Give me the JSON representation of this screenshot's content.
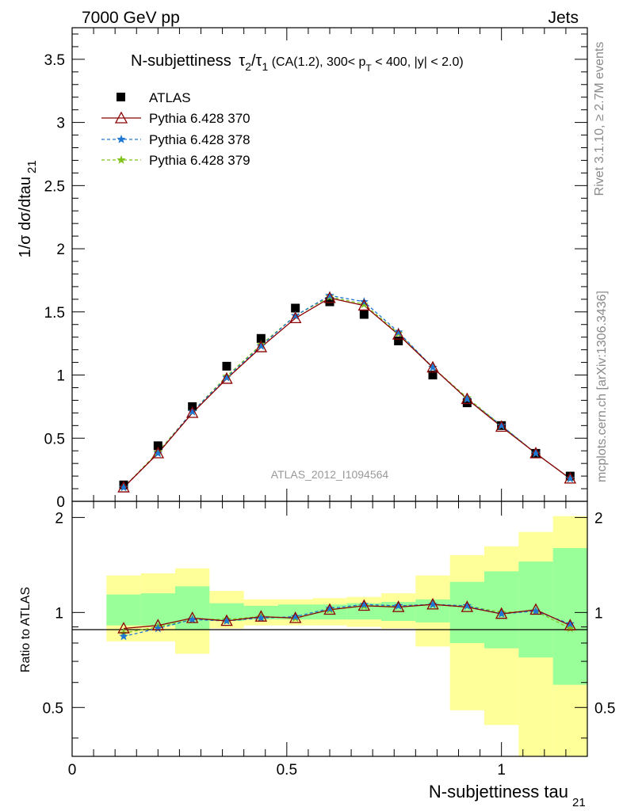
{
  "header": {
    "left": "7000 GeV pp",
    "right": "Jets"
  },
  "side_labels": {
    "rivet": "Rivet 3.1.10, ≥ 2.7M events",
    "mcplots": "mcplots.cern.ch [arXiv:1306.3436]"
  },
  "watermark": "ATLAS_2012_I1094564",
  "colors": {
    "atlas": "#000000",
    "p370": "#8b0000",
    "p378": "#1f77d4",
    "p379": "#7fc31c",
    "band_green": "#99ff99",
    "band_yellow": "#ffff99"
  },
  "chart_data": [
    {
      "type": "scatter",
      "panel": "main",
      "title_text": "N-subjettiness τ₂/τ₁ (CA(1.2), 300< p_T < 400, |y| < 2.0)",
      "title_parts": {
        "main": "N-subjettiness",
        "tau": "τ",
        "sub2": "2",
        "slash": "/",
        "sub1": "1",
        "cuts_a": " (CA(1.2), 300< p",
        "subT": "T",
        "cuts_b": " < 400, |y| < 2.0)"
      },
      "ylabel": "1/σ dσ/dtau",
      "ylabel_sub": "21",
      "xlim": [
        0,
        1.2
      ],
      "ylim": [
        0,
        3.75
      ],
      "yticks": [
        0,
        0.5,
        1,
        1.5,
        2,
        2.5,
        3,
        3.5
      ],
      "ytick_labels": [
        "0",
        "0.5",
        "1",
        "1.5",
        "2",
        "2.5",
        "3",
        "3.5"
      ],
      "x": [
        0.12,
        0.2,
        0.28,
        0.36,
        0.44,
        0.52,
        0.6,
        0.68,
        0.76,
        0.84,
        0.92,
        1.0,
        1.08,
        1.16
      ],
      "series": [
        {
          "name": "ATLAS",
          "marker": "square",
          "values": [
            0.13,
            0.44,
            0.75,
            1.07,
            1.29,
            1.53,
            1.58,
            1.48,
            1.27,
            1.0,
            0.78,
            0.6,
            0.38,
            0.2
          ]
        },
        {
          "name": "Pythia 6.428 370",
          "marker": "triangle",
          "values": [
            0.11,
            0.38,
            0.7,
            0.97,
            1.22,
            1.45,
            1.61,
            1.55,
            1.32,
            1.06,
            0.81,
            0.59,
            0.38,
            0.18
          ]
        },
        {
          "name": "Pythia 6.428 378",
          "marker": "star",
          "values": [
            0.11,
            0.38,
            0.71,
            0.98,
            1.23,
            1.47,
            1.63,
            1.58,
            1.34,
            1.06,
            0.81,
            0.6,
            0.38,
            0.18
          ]
        },
        {
          "name": "Pythia 6.428 379",
          "marker": "star",
          "values": [
            0.11,
            0.39,
            0.71,
            0.99,
            1.24,
            1.47,
            1.62,
            1.56,
            1.33,
            1.06,
            0.82,
            0.6,
            0.38,
            0.18
          ]
        }
      ]
    },
    {
      "type": "line",
      "panel": "ratio",
      "ylabel": "Ratio to ATLAS",
      "xlabel": "N-subjettiness tau",
      "xlabel_sub": "21",
      "xlim": [
        0,
        1.2
      ],
      "ylim": [
        0.35,
        2.25
      ],
      "xticks": [
        0,
        0.5,
        1
      ],
      "xtick_labels": [
        "0",
        "0.5",
        "1"
      ],
      "yticks": [
        0.5,
        1,
        2
      ],
      "ytick_labels": [
        "0.5",
        "1",
        "2"
      ],
      "bin_edges": [
        0.08,
        0.16,
        0.24,
        0.32,
        0.4,
        0.48,
        0.56,
        0.64,
        0.72,
        0.8,
        0.88,
        0.96,
        1.04,
        1.12,
        1.2
      ],
      "band_green": {
        "low": [
          0.91,
          0.91,
          0.88,
          0.94,
          0.95,
          0.95,
          0.95,
          0.95,
          0.94,
          0.93,
          0.8,
          0.77,
          0.72,
          0.59
        ],
        "high": [
          1.14,
          1.15,
          1.21,
          1.07,
          1.05,
          1.06,
          1.06,
          1.07,
          1.08,
          1.1,
          1.25,
          1.35,
          1.45,
          1.6
        ]
      },
      "band_yellow": {
        "low": [
          0.81,
          0.81,
          0.74,
          0.89,
          0.91,
          0.91,
          0.91,
          0.9,
          0.89,
          0.78,
          0.49,
          0.44,
          0.35,
          0.35
        ],
        "high": [
          1.31,
          1.33,
          1.38,
          1.17,
          1.1,
          1.1,
          1.11,
          1.12,
          1.15,
          1.31,
          1.52,
          1.62,
          1.8,
          2.02
        ]
      },
      "x": [
        0.12,
        0.2,
        0.28,
        0.36,
        0.44,
        0.52,
        0.6,
        0.68,
        0.76,
        0.84,
        0.92,
        1.0,
        1.08,
        1.16
      ],
      "series": [
        {
          "name": "Pythia 6.428 370",
          "marker": "triangle",
          "values": [
            0.89,
            0.91,
            0.96,
            0.94,
            0.97,
            0.96,
            1.02,
            1.05,
            1.04,
            1.06,
            1.04,
            0.99,
            1.02,
            0.91
          ]
        },
        {
          "name": "Pythia 6.428 378",
          "marker": "star",
          "values": [
            0.84,
            0.89,
            0.95,
            0.94,
            0.96,
            0.97,
            1.03,
            1.06,
            1.05,
            1.06,
            1.05,
            0.99,
            1.01,
            0.92
          ]
        },
        {
          "name": "Pythia 6.428 379",
          "marker": "star",
          "values": [
            0.86,
            0.9,
            0.95,
            0.95,
            0.97,
            0.96,
            1.02,
            1.05,
            1.05,
            1.06,
            1.05,
            1.0,
            1.01,
            0.89
          ]
        }
      ]
    }
  ]
}
